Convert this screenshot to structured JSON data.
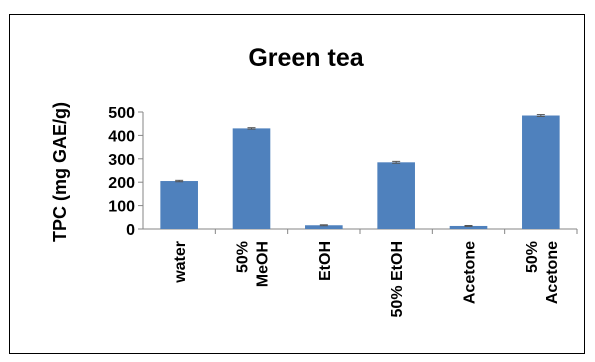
{
  "chart_data": {
    "type": "bar",
    "title": "Green tea",
    "ylabel": "TPC (mg GAE/g)",
    "xlabel": "",
    "categories": [
      [
        "water"
      ],
      [
        "50%",
        "MeOH"
      ],
      [
        "EtOH"
      ],
      [
        "50% EtOH"
      ],
      [
        "Acetone"
      ],
      [
        "50%",
        "Acetone"
      ]
    ],
    "values": [
      205,
      430,
      16,
      285,
      13,
      485
    ],
    "error": [
      3,
      3,
      2,
      4,
      2,
      4
    ],
    "ylim": [
      0,
      500
    ],
    "yticks": [
      0,
      100,
      200,
      300,
      400,
      500
    ],
    "grid": false,
    "legend": "none",
    "bar_color": "#4f81bd",
    "error_color": "#555555"
  }
}
